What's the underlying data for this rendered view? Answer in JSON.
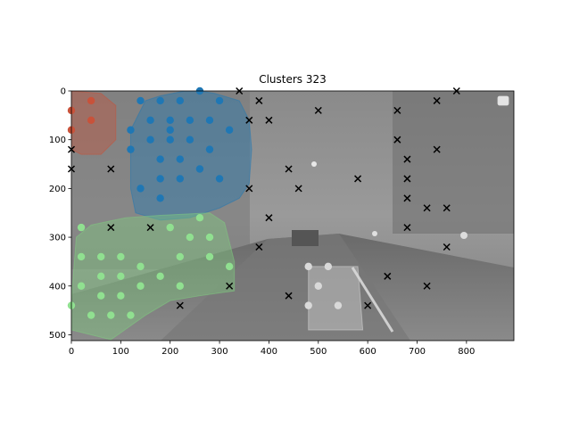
{
  "chart_data": {
    "type": "scatter",
    "title": "Clusters 323",
    "xlabel": "",
    "ylabel": "",
    "xlim": [
      0,
      896
    ],
    "ylim": [
      512,
      0
    ],
    "y_axis_inverted": true,
    "xticks": [
      0,
      100,
      200,
      300,
      400,
      500,
      600,
      700,
      800
    ],
    "yticks": [
      0,
      100,
      200,
      300,
      400,
      500
    ],
    "grid": false,
    "background": "grayscale night street photograph",
    "legend": {
      "placement": "top-right",
      "entries": []
    },
    "clusters": [
      {
        "color": "#1f77b4",
        "hull_color": "#1f77b4",
        "hull": [
          [
            120,
            80
          ],
          [
            150,
            20
          ],
          [
            180,
            10
          ],
          [
            230,
            0
          ],
          [
            260,
            0
          ],
          [
            290,
            5
          ],
          [
            340,
            20
          ],
          [
            360,
            60
          ],
          [
            365,
            120
          ],
          [
            360,
            190
          ],
          [
            340,
            220
          ],
          [
            300,
            240
          ],
          [
            240,
            260
          ],
          [
            180,
            265
          ],
          [
            130,
            250
          ],
          [
            120,
            200
          ],
          [
            120,
            120
          ]
        ],
        "points": [
          [
            140,
            20
          ],
          [
            180,
            20
          ],
          [
            220,
            20
          ],
          [
            260,
            0
          ],
          [
            300,
            20
          ],
          [
            160,
            60
          ],
          [
            200,
            60
          ],
          [
            240,
            60
          ],
          [
            280,
            60
          ],
          [
            120,
            80
          ],
          [
            200,
            80
          ],
          [
            320,
            80
          ],
          [
            160,
            100
          ],
          [
            200,
            100
          ],
          [
            240,
            100
          ],
          [
            120,
            120
          ],
          [
            280,
            120
          ],
          [
            180,
            140
          ],
          [
            220,
            140
          ],
          [
            260,
            160
          ],
          [
            180,
            180
          ],
          [
            220,
            180
          ],
          [
            300,
            180
          ],
          [
            140,
            200
          ],
          [
            180,
            220
          ]
        ]
      },
      {
        "color": "#90e090",
        "hull_color": "#7fd07f",
        "hull": [
          [
            0,
            430
          ],
          [
            10,
            300
          ],
          [
            40,
            275
          ],
          [
            110,
            260
          ],
          [
            180,
            255
          ],
          [
            280,
            250
          ],
          [
            310,
            270
          ],
          [
            330,
            350
          ],
          [
            330,
            410
          ],
          [
            260,
            420
          ],
          [
            200,
            430
          ],
          [
            150,
            460
          ],
          [
            80,
            510
          ],
          [
            0,
            490
          ]
        ],
        "points": [
          [
            20,
            280
          ],
          [
            200,
            280
          ],
          [
            260,
            260
          ],
          [
            240,
            300
          ],
          [
            280,
            300
          ],
          [
            20,
            340
          ],
          [
            60,
            340
          ],
          [
            100,
            340
          ],
          [
            220,
            340
          ],
          [
            280,
            340
          ],
          [
            140,
            360
          ],
          [
            320,
            360
          ],
          [
            60,
            380
          ],
          [
            100,
            380
          ],
          [
            180,
            380
          ],
          [
            20,
            400
          ],
          [
            140,
            400
          ],
          [
            220,
            400
          ],
          [
            60,
            420
          ],
          [
            100,
            420
          ],
          [
            0,
            440
          ],
          [
            40,
            460
          ],
          [
            80,
            460
          ],
          [
            120,
            460
          ]
        ]
      },
      {
        "color": "#c8523a",
        "hull_color": "#c8523a",
        "hull": [
          [
            0,
            0
          ],
          [
            60,
            5
          ],
          [
            90,
            30
          ],
          [
            90,
            100
          ],
          [
            60,
            130
          ],
          [
            20,
            130
          ],
          [
            0,
            120
          ]
        ],
        "points": [
          [
            0,
            40
          ],
          [
            40,
            20
          ],
          [
            40,
            60
          ],
          [
            0,
            80
          ]
        ]
      },
      {
        "color": "#d9d9d9",
        "hull_color": "#d9d9d9",
        "hull": [
          [
            480,
            360
          ],
          [
            540,
            360
          ],
          [
            580,
            360
          ],
          [
            590,
            490
          ],
          [
            480,
            490
          ]
        ],
        "points": [
          [
            480,
            360
          ],
          [
            520,
            360
          ],
          [
            500,
            400
          ],
          [
            480,
            440
          ],
          [
            540,
            440
          ]
        ]
      }
    ],
    "noise_points": {
      "marker": "x",
      "color": "#000000",
      "points": [
        [
          0,
          120
        ],
        [
          0,
          160
        ],
        [
          80,
          160
        ],
        [
          80,
          280
        ],
        [
          160,
          280
        ],
        [
          220,
          440
        ],
        [
          320,
          400
        ],
        [
          340,
          0
        ],
        [
          380,
          20
        ],
        [
          360,
          60
        ],
        [
          400,
          60
        ],
        [
          360,
          200
        ],
        [
          400,
          260
        ],
        [
          380,
          320
        ],
        [
          440,
          160
        ],
        [
          460,
          200
        ],
        [
          440,
          420
        ],
        [
          500,
          40
        ],
        [
          580,
          180
        ],
        [
          600,
          440
        ],
        [
          640,
          380
        ],
        [
          660,
          40
        ],
        [
          660,
          100
        ],
        [
          680,
          140
        ],
        [
          680,
          180
        ],
        [
          680,
          220
        ],
        [
          680,
          280
        ],
        [
          720,
          240
        ],
        [
          720,
          400
        ],
        [
          740,
          20
        ],
        [
          740,
          120
        ],
        [
          760,
          240
        ],
        [
          760,
          320
        ],
        [
          780,
          0
        ]
      ]
    }
  }
}
